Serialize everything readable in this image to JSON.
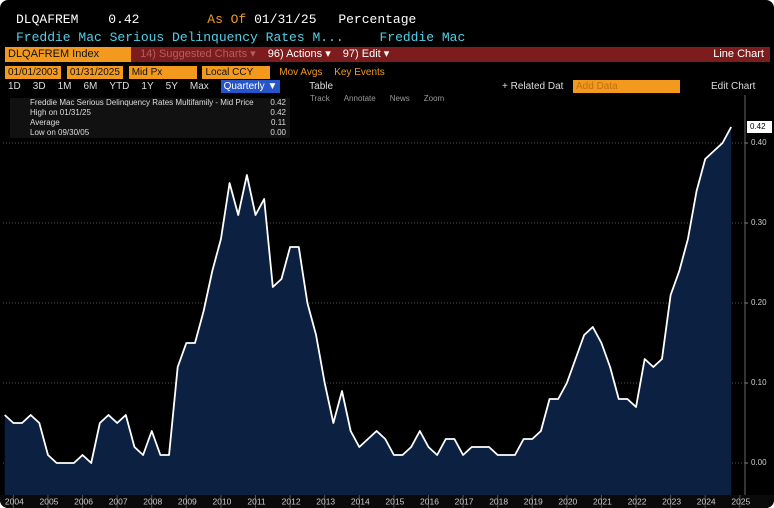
{
  "header": {
    "ticker": "DLQAFREM",
    "last": "0.42",
    "as_of_label": "As Of",
    "as_of": "01/31/25",
    "units": "Percentage",
    "description": "Freddie Mac Serious Delinquency Rates M...",
    "source": "Freddie Mac"
  },
  "toolbar": {
    "security": "DLQAFREM Index",
    "suggested": "14) Suggested Charts ▾",
    "actions": "96) Actions ▾",
    "edit": "97) Edit ▾",
    "chart_type": "Line Chart"
  },
  "controls": {
    "start": "01/01/2003",
    "end": "01/31/2025",
    "field": "Mid Px",
    "currency": "Local CCY",
    "mov_avgs": "Mov Avgs",
    "key_events": "Key Events",
    "ranges": [
      "1D",
      "3D",
      "1M",
      "6M",
      "YTD",
      "1Y",
      "5Y",
      "Max"
    ],
    "period": "Quarterly ▼",
    "table": "Table",
    "related": "+ Related Dat",
    "add_data": "Add Data",
    "edit_chart": "Edit Chart",
    "tools": [
      "Track",
      "Annotate",
      "News",
      "Zoom"
    ]
  },
  "legend": [
    {
      "value": "0.42"
    },
    {
      "label": "High on 01/31/25",
      "value": "0.42"
    },
    {
      "label": "Average",
      "value": "0.11"
    },
    {
      "label": "Low on 09/30/05",
      "value": "0.00"
    }
  ],
  "chart_data": {
    "type": "area",
    "x": [
      2003.75,
      2004,
      2004.25,
      2004.5,
      2004.75,
      2005,
      2005.25,
      2005.5,
      2005.75,
      2006,
      2006.25,
      2006.5,
      2006.75,
      2007,
      2007.25,
      2007.5,
      2007.75,
      2008,
      2008.25,
      2008.5,
      2008.75,
      2009,
      2009.25,
      2009.5,
      2009.75,
      2010,
      2010.25,
      2010.5,
      2010.75,
      2011,
      2011.25,
      2011.5,
      2011.75,
      2012,
      2012.25,
      2012.5,
      2012.75,
      2013,
      2013.25,
      2013.5,
      2013.75,
      2014,
      2014.25,
      2014.5,
      2014.75,
      2015,
      2015.25,
      2015.5,
      2015.75,
      2016,
      2016.25,
      2016.5,
      2016.75,
      2017,
      2017.25,
      2017.5,
      2017.75,
      2018,
      2018.25,
      2018.5,
      2018.75,
      2019,
      2019.25,
      2019.5,
      2019.75,
      2020,
      2020.25,
      2020.5,
      2020.75,
      2021,
      2021.25,
      2021.5,
      2021.75,
      2022,
      2022.25,
      2022.5,
      2022.75,
      2023,
      2023.25,
      2023.5,
      2023.75,
      2024,
      2024.25,
      2024.5,
      2024.75
    ],
    "series": [
      {
        "name": "Freddie Mac Serious Delinquency Rates Multifamily - Mid Price",
        "color": "#ffffff",
        "fill": "#0c2142",
        "values": [
          0.06,
          0.05,
          0.05,
          0.06,
          0.05,
          0.01,
          0,
          0,
          0,
          0.01,
          0,
          0.05,
          0.06,
          0.05,
          0.06,
          0.02,
          0.01,
          0.04,
          0.01,
          0.01,
          0.12,
          0.15,
          0.15,
          0.19,
          0.24,
          0.28,
          0.35,
          0.31,
          0.36,
          0.31,
          0.33,
          0.22,
          0.23,
          0.27,
          0.27,
          0.2,
          0.16,
          0.1,
          0.05,
          0.09,
          0.04,
          0.02,
          0.03,
          0.04,
          0.03,
          0.01,
          0.01,
          0.02,
          0.04,
          0.02,
          0.01,
          0.03,
          0.03,
          0.01,
          0.02,
          0.02,
          0.02,
          0.01,
          0.01,
          0.01,
          0.03,
          0.03,
          0.04,
          0.08,
          0.08,
          0.1,
          0.13,
          0.16,
          0.17,
          0.15,
          0.12,
          0.08,
          0.08,
          0.07,
          0.13,
          0.12,
          0.13,
          0.21,
          0.24,
          0.28,
          0.34,
          0.38,
          0.39,
          0.4,
          0.42
        ]
      }
    ],
    "xlim": [
      2003.7,
      2025.15
    ],
    "ylim": [
      -0.04,
      0.46
    ],
    "xticks": [
      2004,
      2005,
      2006,
      2007,
      2008,
      2009,
      2010,
      2011,
      2012,
      2013,
      2014,
      2015,
      2016,
      2017,
      2018,
      2019,
      2020,
      2021,
      2022,
      2023,
      2024,
      2025
    ],
    "yticks": [
      {
        "value": 0,
        "label": "0.00"
      },
      {
        "value": 0.1,
        "label": "0.10"
      },
      {
        "value": 0.2,
        "label": "0.20"
      },
      {
        "value": 0.3,
        "label": "0.30"
      },
      {
        "value": 0.4,
        "label": "0.40"
      }
    ],
    "grid": true
  }
}
